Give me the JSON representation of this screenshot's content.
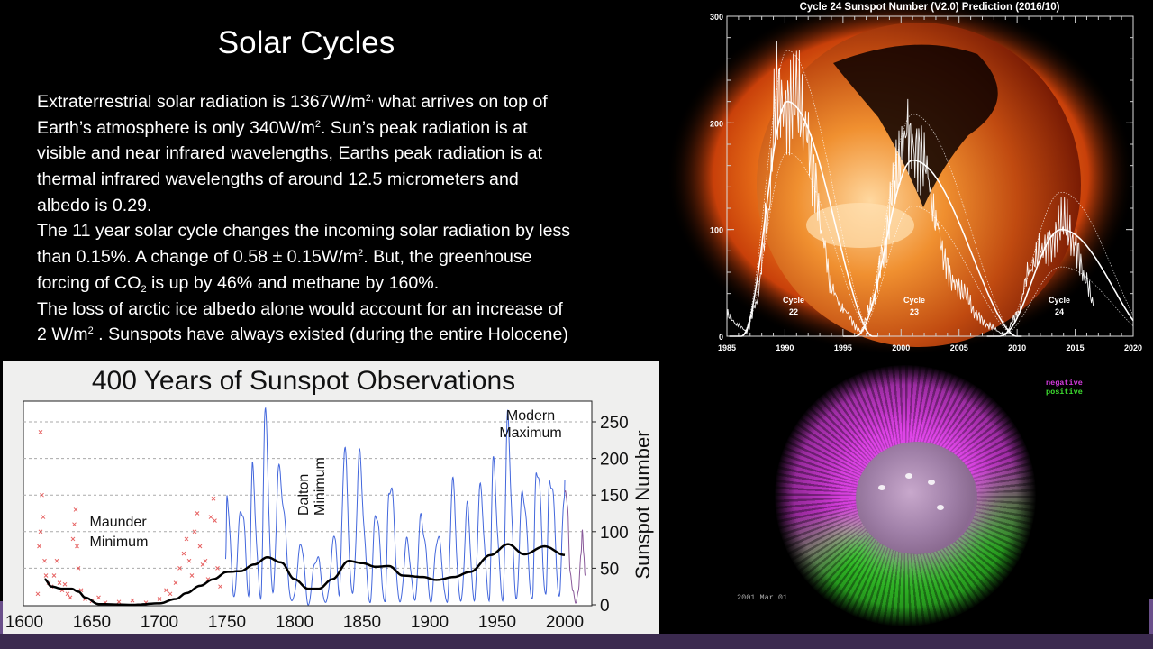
{
  "slide": {
    "title": "Solar Cycles",
    "lines": [
      [
        {
          "t": "Extraterrestrial solar radiation is 1367W/m"
        },
        {
          "sup": "2,"
        },
        {
          "t": " what arrives on top of"
        }
      ],
      [
        {
          "t": "Earth’s atmosphere is only 340W/m"
        },
        {
          "sup": "2"
        },
        {
          "t": ". Sun’s peak radiation is at"
        }
      ],
      [
        {
          "t": "visible and near infrared wavelengths, Earths peak radiation is at"
        }
      ],
      [
        {
          "t": "thermal infrared wavelengths of around 12.5 micrometers and"
        }
      ],
      [
        {
          "t": "albedo is 0.29."
        }
      ],
      [
        {
          "t": "The 11 year solar cycle changes the incoming solar radiation by less"
        }
      ],
      [
        {
          "t": "than 0.15%. A change of 0.58 ± 0.15W/m"
        },
        {
          "sup": "2"
        },
        {
          "t": ". But, the greenhouse"
        }
      ],
      [
        {
          "t": "forcing of CO"
        },
        {
          "sub": "2"
        },
        {
          "t": " is  up by 46% and methane by 160%."
        }
      ],
      [
        {
          "t": "The loss of arctic ice albedo alone would account for an increase of"
        }
      ],
      [
        {
          "t": "2 W/m"
        },
        {
          "sup": "2"
        },
        {
          "t": " . Sunspots have always existed (during the entire Holocene)"
        }
      ]
    ]
  },
  "magnetic_image": {
    "legend_negative": "negative",
    "legend_positive": "positive",
    "date": "2001 Mar 01",
    "colors": {
      "negative": "#d63ce0",
      "positive": "#3ee030"
    }
  },
  "chart_data": [
    {
      "type": "line",
      "title": "400 Years of Sunspot Observations",
      "xlabel": "",
      "ylabel": "Sunspot Number",
      "xlim": [
        1600,
        2020
      ],
      "ylim": [
        0,
        278
      ],
      "xticks": [
        "1600",
        "1650",
        "1700",
        "1750",
        "1800",
        "1850",
        "1900",
        "1950",
        "2000"
      ],
      "yticks": [
        "0",
        "50",
        "100",
        "150",
        "200",
        "250"
      ],
      "grid": "dashed horizontal",
      "annotations": [
        {
          "text": [
            "Maunder",
            "Minimum"
          ],
          "x": 1675,
          "y": 100
        },
        {
          "text": [
            "Dalton",
            "Minimum"
          ],
          "x": 1808,
          "y": 160,
          "rotated": true
        },
        {
          "text": [
            "Modern",
            "Maximum"
          ],
          "x": 1958,
          "y": 245
        }
      ],
      "colors": {
        "early": "#e03a3a",
        "telescope": "#2f57d8",
        "recent": "#8a5a9a",
        "trend": "#000000"
      },
      "early_observations": [
        [
          1610,
          15
        ],
        [
          1611,
          80
        ],
        [
          1612,
          100
        ],
        [
          1612,
          236
        ],
        [
          1613,
          150
        ],
        [
          1614,
          120
        ],
        [
          1615,
          60
        ],
        [
          1616,
          40
        ],
        [
          1618,
          30
        ],
        [
          1620,
          25
        ],
        [
          1622,
          40
        ],
        [
          1624,
          60
        ],
        [
          1626,
          30
        ],
        [
          1628,
          20
        ],
        [
          1630,
          28
        ],
        [
          1632,
          15
        ],
        [
          1634,
          10
        ],
        [
          1636,
          90
        ],
        [
          1637,
          110
        ],
        [
          1638,
          130
        ],
        [
          1639,
          80
        ],
        [
          1640,
          50
        ],
        [
          1642,
          20
        ],
        [
          1645,
          8
        ],
        [
          1650,
          5
        ],
        [
          1655,
          10
        ],
        [
          1660,
          3
        ],
        [
          1670,
          4
        ],
        [
          1680,
          6
        ],
        [
          1690,
          3
        ],
        [
          1700,
          8
        ],
        [
          1705,
          20
        ],
        [
          1708,
          15
        ],
        [
          1712,
          30
        ],
        [
          1715,
          50
        ],
        [
          1718,
          70
        ],
        [
          1720,
          90
        ],
        [
          1722,
          60
        ],
        [
          1724,
          40
        ],
        [
          1726,
          100
        ],
        [
          1728,
          125
        ],
        [
          1730,
          80
        ],
        [
          1732,
          55
        ],
        [
          1734,
          60
        ],
        [
          1736,
          35
        ],
        [
          1738,
          120
        ],
        [
          1740,
          145
        ],
        [
          1741,
          115
        ],
        [
          1743,
          50
        ],
        [
          1745,
          25
        ]
      ],
      "telescope_series": [
        [
          1749,
          60
        ],
        [
          1750,
          150
        ],
        [
          1755,
          10
        ],
        [
          1761,
          150
        ],
        [
          1766,
          12
        ],
        [
          1769,
          170
        ],
        [
          1775,
          10
        ],
        [
          1778,
          238
        ],
        [
          1784,
          15
        ],
        [
          1788,
          190
        ],
        [
          1798,
          5
        ],
        [
          1805,
          80
        ],
        [
          1810,
          0
        ],
        [
          1816,
          70
        ],
        [
          1823,
          2
        ],
        [
          1830,
          100
        ],
        [
          1833,
          10
        ],
        [
          1837,
          205
        ],
        [
          1843,
          15
        ],
        [
          1848,
          180
        ],
        [
          1856,
          5
        ],
        [
          1860,
          120
        ],
        [
          1867,
          5
        ],
        [
          1870,
          175
        ],
        [
          1878,
          3
        ],
        [
          1883,
          90
        ],
        [
          1889,
          5
        ],
        [
          1894,
          130
        ],
        [
          1901,
          3
        ],
        [
          1906,
          100
        ],
        [
          1913,
          2
        ],
        [
          1917,
          155
        ],
        [
          1923,
          5
        ],
        [
          1928,
          120
        ],
        [
          1933,
          5
        ],
        [
          1937,
          160
        ],
        [
          1944,
          5
        ],
        [
          1947,
          200
        ],
        [
          1954,
          5
        ],
        [
          1958,
          240
        ],
        [
          1964,
          10
        ],
        [
          1969,
          145
        ],
        [
          1976,
          10
        ],
        [
          1979,
          190
        ],
        [
          1986,
          15
        ],
        [
          1989,
          200
        ],
        [
          1996,
          10
        ],
        [
          2000,
          170
        ]
      ],
      "recent_series": [
        [
          2000,
          150
        ],
        [
          2002,
          120
        ],
        [
          2004,
          50
        ],
        [
          2006,
          20
        ],
        [
          2008,
          3
        ],
        [
          2010,
          20
        ],
        [
          2012,
          60
        ],
        [
          2013,
          95
        ],
        [
          2014,
          70
        ],
        [
          2015,
          40
        ]
      ],
      "trend": [
        [
          1615,
          35
        ],
        [
          1620,
          25
        ],
        [
          1628,
          22
        ],
        [
          1635,
          22
        ],
        [
          1640,
          18
        ],
        [
          1645,
          10
        ],
        [
          1655,
          1
        ],
        [
          1680,
          0
        ],
        [
          1700,
          2
        ],
        [
          1712,
          8
        ],
        [
          1720,
          16
        ],
        [
          1730,
          26
        ],
        [
          1740,
          35
        ],
        [
          1750,
          45
        ],
        [
          1760,
          46
        ],
        [
          1770,
          55
        ],
        [
          1780,
          65
        ],
        [
          1790,
          58
        ],
        [
          1800,
          35
        ],
        [
          1810,
          22
        ],
        [
          1818,
          22
        ],
        [
          1828,
          35
        ],
        [
          1840,
          60
        ],
        [
          1850,
          57
        ],
        [
          1860,
          52
        ],
        [
          1870,
          53
        ],
        [
          1880,
          40
        ],
        [
          1895,
          38
        ],
        [
          1905,
          34
        ],
        [
          1918,
          38
        ],
        [
          1930,
          45
        ],
        [
          1945,
          68
        ],
        [
          1958,
          83
        ],
        [
          1970,
          69
        ],
        [
          1985,
          80
        ],
        [
          2000,
          68
        ]
      ]
    },
    {
      "type": "line",
      "title": "Cycle 24 Sunspot Number (V2.0) Prediction (2016/10)",
      "xlim": [
        1985,
        2020
      ],
      "ylim": [
        0,
        300
      ],
      "xticks": [
        "1985",
        "1990",
        "1995",
        "2000",
        "2005",
        "2010",
        "2015",
        "2020"
      ],
      "yticks": [
        "0",
        "100",
        "200",
        "300"
      ],
      "cycles": [
        {
          "label": [
            "Cycle",
            "22"
          ],
          "start": 1986.7,
          "peak_year": 1990.2,
          "end": 1996.5,
          "peak": 220,
          "upper": 268,
          "lower": 172
        },
        {
          "label": [
            "Cycle",
            "23"
          ],
          "start": 1996.5,
          "peak_year": 2001.0,
          "end": 2008.9,
          "peak": 165,
          "upper": 208,
          "lower": 122
        },
        {
          "label": [
            "Cycle",
            "24"
          ],
          "start": 2008.9,
          "peak_year": 2013.8,
          "end": 2020.5,
          "peak": 100,
          "upper": 135,
          "lower": 65
        }
      ],
      "monthly": [
        [
          1985,
          20
        ],
        [
          1986,
          10
        ],
        [
          1986.7,
          5
        ],
        [
          1987.5,
          30
        ],
        [
          1988.5,
          110
        ],
        [
          1989.3,
          235
        ],
        [
          1990,
          210
        ],
        [
          1991,
          225
        ],
        [
          1991.7,
          200
        ],
        [
          1992.5,
          150
        ],
        [
          1993.3,
          90
        ],
        [
          1994,
          45
        ],
        [
          1995,
          25
        ],
        [
          1996.5,
          5
        ],
        [
          1997.5,
          30
        ],
        [
          1998.5,
          80
        ],
        [
          1999.5,
          150
        ],
        [
          2000.5,
          190
        ],
        [
          2001.2,
          175
        ],
        [
          2002,
          165
        ],
        [
          2003,
          110
        ],
        [
          2003.8,
          70
        ],
        [
          2004.5,
          50
        ],
        [
          2005.5,
          40
        ],
        [
          2006.5,
          20
        ],
        [
          2007.5,
          10
        ],
        [
          2008.9,
          2
        ],
        [
          2010,
          20
        ],
        [
          2011,
          60
        ],
        [
          2012,
          80
        ],
        [
          2013,
          88
        ],
        [
          2014,
          110
        ],
        [
          2015,
          85
        ],
        [
          2016,
          50
        ],
        [
          2016.6,
          30
        ]
      ]
    }
  ]
}
